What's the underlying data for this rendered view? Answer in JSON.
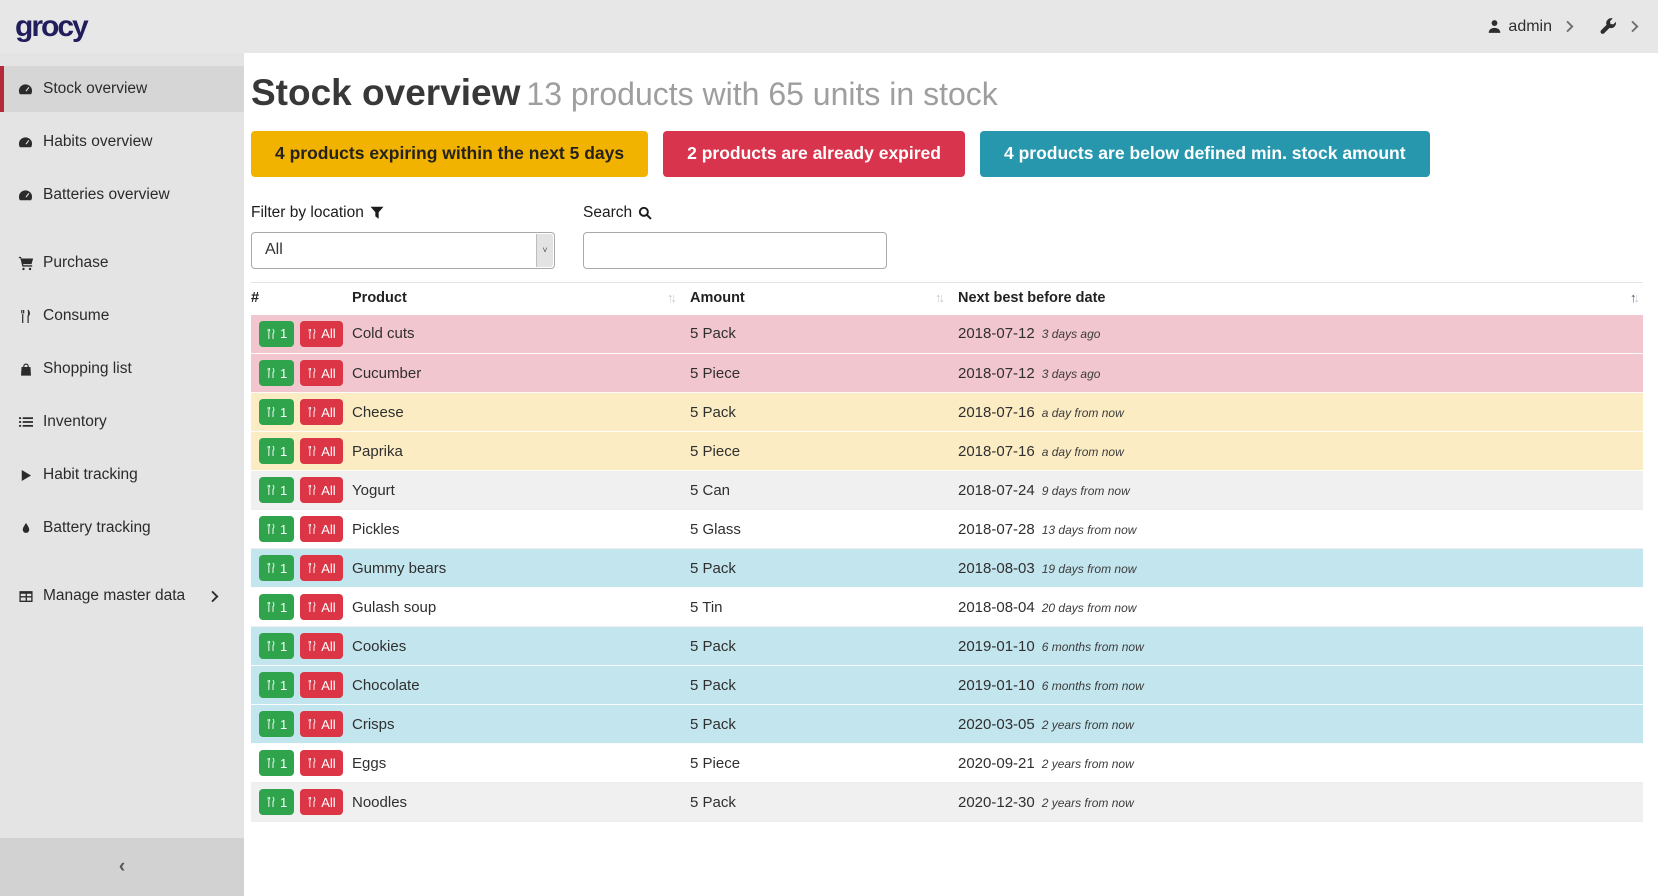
{
  "header": {
    "logo": "grocy",
    "user": "admin",
    "icons": {
      "user": "person-silhouette",
      "settings": "wrench",
      "expand": "chevron-right"
    }
  },
  "sidebar": {
    "items": [
      {
        "label": "Stock overview",
        "icon": "gauge",
        "active": true,
        "gap": false,
        "chevron": false
      },
      {
        "label": "Habits overview",
        "icon": "gauge",
        "active": false,
        "gap": false,
        "chevron": false
      },
      {
        "label": "Batteries overview",
        "icon": "gauge",
        "active": false,
        "gap": false,
        "chevron": false
      },
      {
        "label": "Purchase",
        "icon": "cart",
        "active": false,
        "gap": true,
        "chevron": false
      },
      {
        "label": "Consume",
        "icon": "utensils",
        "active": false,
        "gap": false,
        "chevron": false
      },
      {
        "label": "Shopping list",
        "icon": "bag",
        "active": false,
        "gap": false,
        "chevron": false
      },
      {
        "label": "Inventory",
        "icon": "list",
        "active": false,
        "gap": false,
        "chevron": false
      },
      {
        "label": "Habit tracking",
        "icon": "play",
        "active": false,
        "gap": false,
        "chevron": false
      },
      {
        "label": "Battery tracking",
        "icon": "droplet",
        "active": false,
        "gap": false,
        "chevron": false
      },
      {
        "label": "Manage master data",
        "icon": "grid",
        "active": false,
        "gap": true,
        "chevron": true
      }
    ],
    "collapse_icon": "chevron-left"
  },
  "page": {
    "title": "Stock overview",
    "subtitle": "13 products with 65 units in stock"
  },
  "badges": [
    {
      "label": "4 products expiring within the next 5 days",
      "bg": "#f2b200",
      "fg": "#24221a"
    },
    {
      "label": "2 products are already expired",
      "bg": "#d9344d",
      "fg": "#ffffff"
    },
    {
      "label": "4 products are below defined min. stock amount",
      "bg": "#2797ae",
      "fg": "#ffffff"
    }
  ],
  "filters": {
    "location_label": "Filter by location",
    "location_icon": "funnel",
    "location_value": "All",
    "search_label": "Search",
    "search_icon": "magnifier",
    "search_value": ""
  },
  "table": {
    "columns": [
      "#",
      "Product",
      "Amount",
      "Next best before date"
    ],
    "sort_states": [
      "none",
      "both",
      "both",
      "asc"
    ],
    "row_buttons": {
      "consume_one": "1",
      "consume_all": "All",
      "icon": "utensils"
    },
    "status_colors": {
      "expired": "#f2c6ce",
      "expiring": "#fbecc3",
      "belowmin": "#c3e5ee",
      "stripe": "#f0f0f0",
      "plain": "#ffffff"
    },
    "rows": [
      {
        "product": "Cold cuts",
        "amount": "5 Pack",
        "date": "2018-07-12",
        "relative": "3 days ago",
        "status": "expired"
      },
      {
        "product": "Cucumber",
        "amount": "5 Piece",
        "date": "2018-07-12",
        "relative": "3 days ago",
        "status": "expired"
      },
      {
        "product": "Cheese",
        "amount": "5 Pack",
        "date": "2018-07-16",
        "relative": "a day from now",
        "status": "expiring"
      },
      {
        "product": "Paprika",
        "amount": "5 Piece",
        "date": "2018-07-16",
        "relative": "a day from now",
        "status": "expiring"
      },
      {
        "product": "Yogurt",
        "amount": "5 Can",
        "date": "2018-07-24",
        "relative": "9 days from now",
        "status": "stripe"
      },
      {
        "product": "Pickles",
        "amount": "5 Glass",
        "date": "2018-07-28",
        "relative": "13 days from now",
        "status": "plain"
      },
      {
        "product": "Gummy bears",
        "amount": "5 Pack",
        "date": "2018-08-03",
        "relative": "19 days from now",
        "status": "belowmin"
      },
      {
        "product": "Gulash soup",
        "amount": "5 Tin",
        "date": "2018-08-04",
        "relative": "20 days from now",
        "status": "plain"
      },
      {
        "product": "Cookies",
        "amount": "5 Pack",
        "date": "2019-01-10",
        "relative": "6 months from now",
        "status": "belowmin"
      },
      {
        "product": "Chocolate",
        "amount": "5 Pack",
        "date": "2019-01-10",
        "relative": "6 months from now",
        "status": "belowmin"
      },
      {
        "product": "Crisps",
        "amount": "5 Pack",
        "date": "2020-03-05",
        "relative": "2 years from now",
        "status": "belowmin"
      },
      {
        "product": "Eggs",
        "amount": "5 Piece",
        "date": "2020-09-21",
        "relative": "2 years from now",
        "status": "plain"
      },
      {
        "product": "Noodles",
        "amount": "5 Pack",
        "date": "2020-12-30",
        "relative": "2 years from now",
        "status": "stripe"
      }
    ]
  }
}
